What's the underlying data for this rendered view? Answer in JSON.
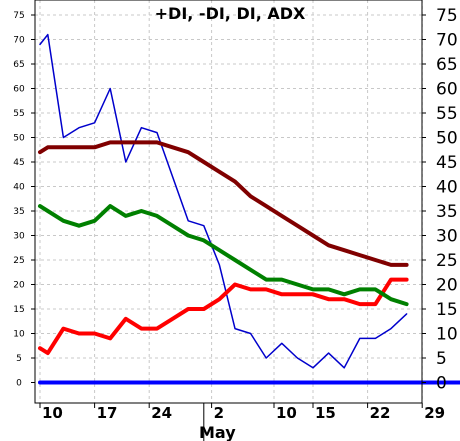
{
  "chart_data": {
    "type": "line",
    "title": "+DI, -DI, DI, ADX",
    "xlabel": "",
    "ylabel": "",
    "ylim": [
      -2,
      77
    ],
    "y_ticks": [
      0,
      5,
      10,
      15,
      20,
      25,
      30,
      35,
      40,
      45,
      50,
      55,
      60,
      65,
      70,
      75
    ],
    "x_range": [
      0,
      54
    ],
    "x_ticks": [
      {
        "label": "10",
        "x": 0
      },
      {
        "label": "17",
        "x": 7
      },
      {
        "label": "24",
        "x": 14
      },
      {
        "label": "2",
        "x": 22
      },
      {
        "label": "10",
        "x": 30
      },
      {
        "label": "15",
        "x": 35
      },
      {
        "label": "22",
        "x": 42
      },
      {
        "label": "29",
        "x": 49
      }
    ],
    "month_label": {
      "label": "May",
      "x": 21
    },
    "grid": true,
    "series": [
      {
        "color": "#0000cc",
        "width": 1.5,
        "points": [
          [
            0,
            69
          ],
          [
            1,
            71
          ],
          [
            3,
            50
          ],
          [
            5,
            52
          ],
          [
            7,
            53
          ],
          [
            9,
            60
          ],
          [
            11,
            45
          ],
          [
            13,
            52
          ],
          [
            15,
            51
          ],
          [
            17,
            42
          ],
          [
            19,
            33
          ],
          [
            21,
            32
          ],
          [
            23,
            24
          ],
          [
            25,
            11
          ],
          [
            27,
            10
          ],
          [
            29,
            5
          ],
          [
            31,
            8
          ],
          [
            33,
            5
          ],
          [
            35,
            3
          ],
          [
            37,
            6
          ],
          [
            39,
            3
          ],
          [
            41,
            9
          ],
          [
            43,
            9
          ],
          [
            45,
            11
          ],
          [
            47,
            14
          ]
        ]
      },
      {
        "color": "#ff0000",
        "width": 4,
        "points": [
          [
            0,
            7
          ],
          [
            1,
            6
          ],
          [
            3,
            11
          ],
          [
            5,
            10
          ],
          [
            7,
            10
          ],
          [
            9,
            9
          ],
          [
            11,
            13
          ],
          [
            13,
            11
          ],
          [
            15,
            11
          ],
          [
            17,
            13
          ],
          [
            19,
            15
          ],
          [
            21,
            15
          ],
          [
            23,
            17
          ],
          [
            25,
            20
          ],
          [
            27,
            19
          ],
          [
            29,
            19
          ],
          [
            31,
            18
          ],
          [
            33,
            18
          ],
          [
            35,
            18
          ],
          [
            37,
            17
          ],
          [
            39,
            17
          ],
          [
            41,
            16
          ],
          [
            43,
            16
          ],
          [
            45,
            21
          ],
          [
            47,
            21
          ]
        ]
      },
      {
        "color": "#008000",
        "width": 4,
        "points": [
          [
            0,
            36
          ],
          [
            1,
            35
          ],
          [
            3,
            33
          ],
          [
            5,
            32
          ],
          [
            7,
            33
          ],
          [
            9,
            36
          ],
          [
            11,
            34
          ],
          [
            13,
            35
          ],
          [
            15,
            34
          ],
          [
            17,
            32
          ],
          [
            19,
            30
          ],
          [
            21,
            29
          ],
          [
            23,
            27
          ],
          [
            25,
            25
          ],
          [
            27,
            23
          ],
          [
            29,
            21
          ],
          [
            31,
            21
          ],
          [
            33,
            20
          ],
          [
            35,
            19
          ],
          [
            37,
            19
          ],
          [
            39,
            18
          ],
          [
            41,
            19
          ],
          [
            43,
            19
          ],
          [
            45,
            17
          ],
          [
            47,
            16
          ]
        ]
      },
      {
        "color": "#800000",
        "width": 4,
        "points": [
          [
            0,
            47
          ],
          [
            1,
            48
          ],
          [
            3,
            48
          ],
          [
            5,
            48
          ],
          [
            7,
            48
          ],
          [
            9,
            49
          ],
          [
            11,
            49
          ],
          [
            13,
            49
          ],
          [
            15,
            49
          ],
          [
            17,
            48
          ],
          [
            19,
            47
          ],
          [
            21,
            45
          ],
          [
            23,
            43
          ],
          [
            25,
            41
          ],
          [
            27,
            38
          ],
          [
            29,
            36
          ],
          [
            31,
            34
          ],
          [
            33,
            32
          ],
          [
            35,
            30
          ],
          [
            37,
            28
          ],
          [
            39,
            27
          ],
          [
            41,
            26
          ],
          [
            43,
            25
          ],
          [
            45,
            24
          ],
          [
            47,
            24
          ]
        ]
      },
      {
        "color": "#0000ff",
        "width": 4,
        "points": [
          [
            0,
            0
          ],
          [
            54,
            0
          ]
        ]
      }
    ]
  }
}
